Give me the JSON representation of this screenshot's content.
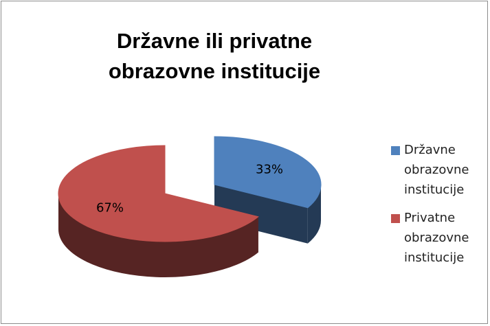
{
  "chart_data": {
    "type": "pie",
    "title": "Državne ili privatne obrazovne institucije",
    "categories": [
      "Državne obrazovne institucije",
      "Privatne obrazovne institucije"
    ],
    "values": [
      33,
      67
    ],
    "value_labels": [
      "33%",
      "67%"
    ],
    "colors": [
      "#4f81bd",
      "#c0504d"
    ],
    "legend": "right"
  }
}
